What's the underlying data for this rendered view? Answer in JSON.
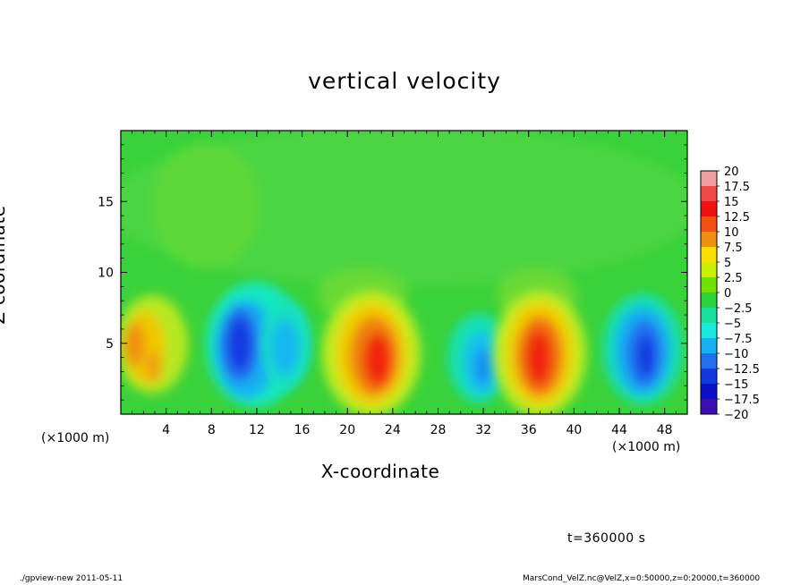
{
  "chart_data": {
    "type": "heatmap",
    "title": "vertical velocity",
    "xlabel": "X-coordinate",
    "ylabel": "Z-coordinate",
    "x_unit_multiplier": "(×1000 m)",
    "xlim": [
      0,
      50
    ],
    "ylim": [
      0,
      20
    ],
    "x_ticks": [
      4,
      8,
      12,
      16,
      20,
      24,
      28,
      32,
      36,
      40,
      44,
      48
    ],
    "y_ticks": [
      5,
      10,
      15
    ],
    "colorbar": {
      "range": [
        -20,
        20
      ],
      "labels": [
        "20",
        "17.5",
        "15",
        "12.5",
        "10",
        "7.5",
        "5",
        "2.5",
        "0",
        "−2.5",
        "−5",
        "−7.5",
        "−10",
        "−12.5",
        "−15",
        "−17.5",
        "−20"
      ],
      "colors": [
        "#f2a0a0",
        "#ee4a4a",
        "#f01010",
        "#f05010",
        "#f09010",
        "#f8e000",
        "#c8f000",
        "#70e000",
        "#2ad43a",
        "#1ae0a0",
        "#18e8e0",
        "#18b0f0",
        "#2070f0",
        "#1438e0",
        "#0a10c8",
        "#3a10b0",
        "#7a10b0"
      ]
    },
    "background_value": 0,
    "features": [
      {
        "x": 2.5,
        "z": 4.5,
        "value": 8
      },
      {
        "x": 10.5,
        "z": 4.5,
        "value": -12
      },
      {
        "x": 13.5,
        "z": 4.5,
        "value": -8
      },
      {
        "x": 22,
        "z": 4,
        "value": 12
      },
      {
        "x": 31.5,
        "z": 3.5,
        "value": -9
      },
      {
        "x": 36.5,
        "z": 4.5,
        "value": 13
      },
      {
        "x": 46,
        "z": 4.5,
        "value": -11
      }
    ]
  },
  "time_label": "t=360000 s",
  "footer": {
    "left": "./gpview-new  2011-05-11",
    "right": "MarsCond_VelZ.nc@VelZ,x=0:50000,z=0:20000,t=360000"
  }
}
